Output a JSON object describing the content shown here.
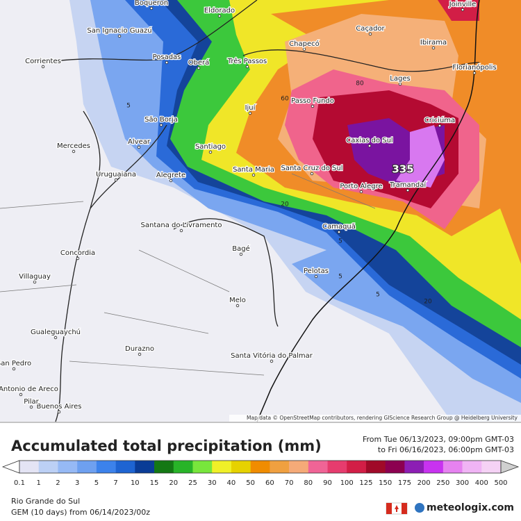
{
  "map": {
    "cities": [
      "Boqueron",
      "Eldorado",
      "San Ignacio Guazú",
      "Posadas",
      "Oberá",
      "Três Passos",
      "Chapecó",
      "Caçador",
      "Joinville",
      "Ibirama",
      "Florianópolis",
      "Lages",
      "Passo Fundo",
      "Ijuí",
      "Corrientes",
      "São Borja",
      "Criciúma",
      "Caxias do Sul",
      "Alvear",
      "Mercedes",
      "Santiago",
      "Santa Maria",
      "Santa Cruz do Sul",
      "Uruguaiana",
      "Alegrete",
      "Tramandaí",
      "Porto Alegre",
      "Santana do Livramento",
      "Camaquã",
      "Concordia",
      "Bagé",
      "Villaguay",
      "Pelotas",
      "Melo",
      "Gualeguaychú",
      "Durazno",
      "Santa Vitória do Palmar",
      "Buenos Aires",
      "San Pedro",
      "San Antonio de Areco",
      "Pilar"
    ],
    "contour_labels": [
      5,
      60,
      80,
      20,
      5,
      5,
      5,
      20,
      335
    ],
    "attribution": "Map data © OpenStreetMap contributors, rendering GIScience Research Group @ Heidelberg University"
  },
  "header": {
    "title": "Accumulated total precipitation (mm)",
    "period_from": "From Tue 06/13/2023, 09:00pm GMT-03",
    "period_to": "to Fri 06/16/2023, 06:00pm GMT-03"
  },
  "legend": {
    "levels": [
      0.1,
      1,
      2,
      3,
      5,
      7,
      10,
      15,
      20,
      25,
      30,
      40,
      50,
      60,
      70,
      80,
      90,
      100,
      125,
      150,
      175,
      200,
      250,
      300,
      400,
      500
    ],
    "colors": [
      "#e4e4f4",
      "#bcd0f5",
      "#96b9f5",
      "#6ea0f0",
      "#3c82eb",
      "#1e64d2",
      "#0a3c96",
      "#147814",
      "#28b428",
      "#78e63c",
      "#f0f028",
      "#e6d200",
      "#f08c00",
      "#f0a040",
      "#f5aa78",
      "#f06496",
      "#e63c6e",
      "#d21e46",
      "#a00a28",
      "#8c0050",
      "#8c1eb4",
      "#c832f0",
      "#e682f0",
      "#f0b4f5",
      "#f5d2f5"
    ]
  },
  "footer": {
    "region": "Rio Grande do Sul",
    "model": "GEM (10 days) from 06/14/2023/00z",
    "brand": "meteologix.com"
  }
}
